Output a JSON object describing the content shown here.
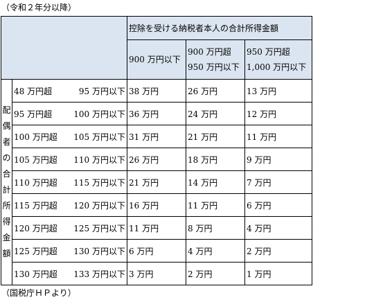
{
  "caption_top": "（令和２年分以降）",
  "caption_bottom": "（国税庁ＨＰより）",
  "table": {
    "header_main": "控除を受ける納税者本人の合計所得金額",
    "col_headers": [
      {
        "line1": "900 万円以下",
        "line2": ""
      },
      {
        "line1": "900 万円超",
        "line2": "950 万円以下"
      },
      {
        "line1": "950 万円超",
        "line2": "1,000 万円以下"
      }
    ],
    "row_header_chars": [
      "配",
      "偶",
      "者",
      "の",
      "合",
      "計",
      "所",
      "得",
      "金",
      "額"
    ],
    "rows": [
      {
        "from": "48 万円超",
        "to": "95 万円以下",
        "values": [
          "38 万円",
          "26 万円",
          "13 万円"
        ]
      },
      {
        "from": "95 万円超",
        "to": "100 万円以下",
        "values": [
          "36 万円",
          "24 万円",
          "12 万円"
        ]
      },
      {
        "from": "100 万円超",
        "to": "105 万円以下",
        "values": [
          "31 万円",
          "21 万円",
          "11 万円"
        ]
      },
      {
        "from": "105 万円超",
        "to": "110 万円以下",
        "values": [
          "26 万円",
          "18 万円",
          "9 万円"
        ]
      },
      {
        "from": "110 万円超",
        "to": "115 万円以下",
        "values": [
          "21 万円",
          "14 万円",
          "7 万円"
        ]
      },
      {
        "from": "115 万円超",
        "to": "120 万円以下",
        "values": [
          "16 万円",
          "11 万円",
          "6 万円"
        ]
      },
      {
        "from": "120 万円超",
        "to": "125 万円以下",
        "values": [
          "11 万円",
          "8 万円",
          "4 万円"
        ]
      },
      {
        "from": "125 万円超",
        "to": "130 万円以下",
        "values": [
          "6 万円",
          "4 万円",
          "2 万円"
        ]
      },
      {
        "from": "130 万円超",
        "to": "133 万円以下",
        "values": [
          "3 万円",
          "2 万円",
          "1 万円"
        ]
      }
    ]
  }
}
